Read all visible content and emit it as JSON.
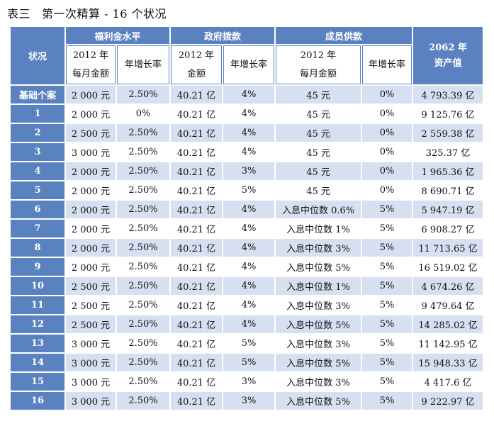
{
  "caption": {
    "label": "表三",
    "title": "第一次精算 - 16 个状况"
  },
  "table": {
    "corner_header": "状况",
    "groups": {
      "welfare": "福利金水平",
      "government": "政府拨款",
      "member": "成员供款"
    },
    "subheaders": {
      "welfare_amount_line1": "2012 年",
      "welfare_amount_line2": "每月金额",
      "welfare_growth": "年增长率",
      "gov_amount_line1": "2012 年",
      "gov_amount_line2": "金额",
      "gov_growth": "年增长率",
      "member_amount_line1": "2012 年",
      "member_amount_line2": "每月金额",
      "member_growth": "年增长率"
    },
    "assets_header": {
      "line1": "2062 年",
      "line2": "资产值"
    },
    "rows": [
      {
        "label": "基础个案",
        "welfare_amount": "2 000 元",
        "welfare_growth": "2.50%",
        "gov_amount": "40.21 亿",
        "gov_growth": "4%",
        "member_amount": "45 元",
        "member_growth": "0%",
        "assets": "4 793.39 亿"
      },
      {
        "label": "1",
        "welfare_amount": "2 000 元",
        "welfare_growth": "0%",
        "gov_amount": "40.21 亿",
        "gov_growth": "4%",
        "member_amount": "45 元",
        "member_growth": "0%",
        "assets": "9 125.76 亿"
      },
      {
        "label": "2",
        "welfare_amount": "2 500 元",
        "welfare_growth": "2.50%",
        "gov_amount": "40.21 亿",
        "gov_growth": "4%",
        "member_amount": "45 元",
        "member_growth": "0%",
        "assets": "2 559.38 亿"
      },
      {
        "label": "3",
        "welfare_amount": "3 000 元",
        "welfare_growth": "2.50%",
        "gov_amount": "40.21 亿",
        "gov_growth": "4%",
        "member_amount": "45 元",
        "member_growth": "0%",
        "assets": "325.37 亿"
      },
      {
        "label": "4",
        "welfare_amount": "2 000 元",
        "welfare_growth": "2.50%",
        "gov_amount": "40.21 亿",
        "gov_growth": "3%",
        "member_amount": "45 元",
        "member_growth": "0%",
        "assets": "1 965.36 亿"
      },
      {
        "label": "5",
        "welfare_amount": "2 000 元",
        "welfare_growth": "2.50%",
        "gov_amount": "40.21 亿",
        "gov_growth": "5%",
        "member_amount": "45 元",
        "member_growth": "0%",
        "assets": "8 690.71 亿"
      },
      {
        "label": "6",
        "welfare_amount": "2 000 元",
        "welfare_growth": "2.50%",
        "gov_amount": "40.21 亿",
        "gov_growth": "4%",
        "member_amount": "入息中位数 0.6%",
        "member_growth": "5%",
        "assets": "5 947.19 亿"
      },
      {
        "label": "7",
        "welfare_amount": "2 000 元",
        "welfare_growth": "2.50%",
        "gov_amount": "40.21 亿",
        "gov_growth": "4%",
        "member_amount": "入息中位数 1%",
        "member_growth": "5%",
        "assets": "6 908.27 亿"
      },
      {
        "label": "8",
        "welfare_amount": "2 000 元",
        "welfare_growth": "2.50%",
        "gov_amount": "40.21 亿",
        "gov_growth": "4%",
        "member_amount": "入息中位数 3%",
        "member_growth": "5%",
        "assets": "11 713.65 亿"
      },
      {
        "label": "9",
        "welfare_amount": "2 000 元",
        "welfare_growth": "2.50%",
        "gov_amount": "40.21 亿",
        "gov_growth": "4%",
        "member_amount": "入息中位数 5%",
        "member_growth": "5%",
        "assets": "16 519.02 亿"
      },
      {
        "label": "10",
        "welfare_amount": "2 500 元",
        "welfare_growth": "2.50%",
        "gov_amount": "40.21 亿",
        "gov_growth": "4%",
        "member_amount": "入息中位数 1%",
        "member_growth": "5%",
        "assets": "4 674.26 亿"
      },
      {
        "label": "11",
        "welfare_amount": "2 500 元",
        "welfare_growth": "2.50%",
        "gov_amount": "40.21 亿",
        "gov_growth": "4%",
        "member_amount": "入息中位数 3%",
        "member_growth": "5%",
        "assets": "9 479.64 亿"
      },
      {
        "label": "12",
        "welfare_amount": "2 500 元",
        "welfare_growth": "2.50%",
        "gov_amount": "40.21 亿",
        "gov_growth": "4%",
        "member_amount": "入息中位数 5%",
        "member_growth": "5%",
        "assets": "14 285.02 亿"
      },
      {
        "label": "13",
        "welfare_amount": "3 000 元",
        "welfare_growth": "2.50%",
        "gov_amount": "40.21 亿",
        "gov_growth": "5%",
        "member_amount": "入息中位数 3%",
        "member_growth": "5%",
        "assets": "11 142.95 亿"
      },
      {
        "label": "14",
        "welfare_amount": "3 000 元",
        "welfare_growth": "2.50%",
        "gov_amount": "40.21 亿",
        "gov_growth": "5%",
        "member_amount": "入息中位数 5%",
        "member_growth": "5%",
        "assets": "15 948.33 亿"
      },
      {
        "label": "15",
        "welfare_amount": "3 000 元",
        "welfare_growth": "2.50%",
        "gov_amount": "40.21 亿",
        "gov_growth": "3%",
        "member_amount": "入息中位数 3%",
        "member_growth": "5%",
        "assets": "4 417.6 亿"
      },
      {
        "label": "16",
        "welfare_amount": "3 000 元",
        "welfare_growth": "2.50%",
        "gov_amount": "40.21 亿",
        "gov_growth": "3%",
        "member_amount": "入息中位数 5%",
        "member_growth": "5%",
        "assets": "9 222.97 亿"
      }
    ]
  },
  "colors": {
    "header_blue": "#5b82c0",
    "stripe_blue": "#d6e0f1",
    "white": "#ffffff"
  }
}
